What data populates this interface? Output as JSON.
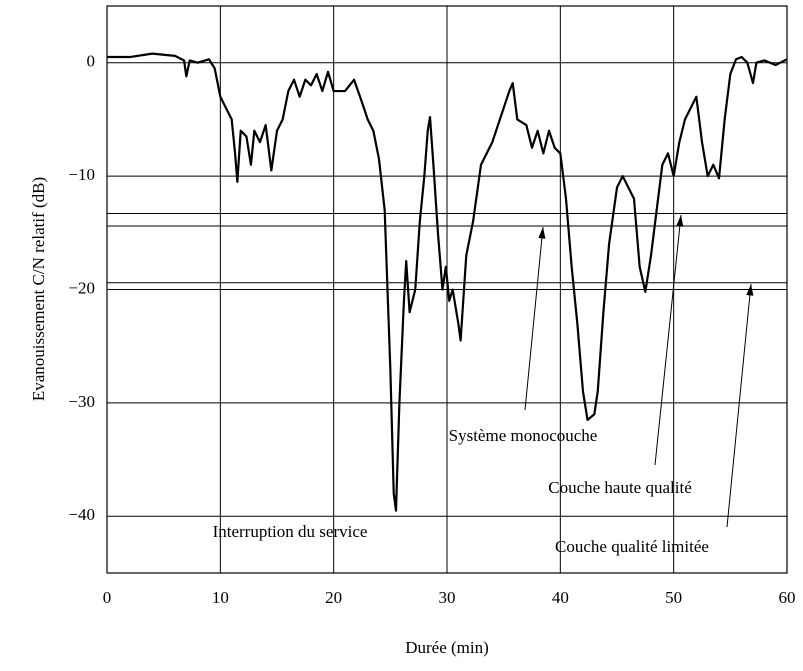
{
  "chart_data": {
    "type": "line",
    "xlabel": "Durée (min)",
    "ylabel": "Evanouissement C/N relatif (dB)",
    "xlim": [
      0,
      60
    ],
    "xticks": [
      0,
      10,
      20,
      30,
      40,
      50,
      60
    ],
    "ylim": [
      -45,
      5
    ],
    "yticks": [
      {
        "value": -40,
        "label": "−40"
      },
      {
        "value": -30,
        "label": "−30"
      },
      {
        "value": -20,
        "label": "−20"
      },
      {
        "value": -10,
        "label": "−10"
      },
      0
    ],
    "grid": true,
    "reference_lines": [
      -13.3,
      -14.4,
      -19.4,
      -20
    ],
    "annotations": [
      "Système monocouche",
      "Couche haute qualité",
      "Couche qualité limitée",
      "Interruption du service"
    ],
    "series": [
      {
        "color": "#000000",
        "x": [
          0,
          2,
          4,
          6,
          6.8,
          7,
          7.3,
          8,
          9,
          9.5,
          10,
          10.5,
          11,
          11.3,
          11.5,
          11.8,
          12.3,
          12.7,
          13,
          13.5,
          14,
          14.5,
          15,
          15.5,
          16,
          16.5,
          17,
          17.5,
          18,
          18.5,
          19,
          19.5,
          20,
          21,
          21.8,
          22.5,
          23,
          23.5,
          24,
          24.5,
          25,
          25.3,
          25.5,
          25.8,
          26.2,
          26.4,
          26.7,
          27.2,
          27.6,
          28,
          28.3,
          28.5,
          28.8,
          29.2,
          29.6,
          29.9,
          30.2,
          30.5,
          31,
          31.2,
          31.7,
          32.3,
          33,
          34,
          35,
          35.5,
          35.8,
          36.2,
          37,
          37.5,
          38,
          38.5,
          39,
          39.5,
          40,
          40.5,
          41,
          41.5,
          42,
          42.4,
          43,
          43.3,
          43.8,
          44.3,
          45,
          45.5,
          46,
          46.5,
          47,
          47.5,
          48,
          48.5,
          49,
          49.5,
          50,
          50.5,
          51,
          52,
          52.5,
          53,
          53.5,
          54,
          54.5,
          55,
          55.5,
          56,
          56.5,
          57,
          57.3,
          58,
          59,
          60
        ],
        "values": [
          0.5,
          0.5,
          0.8,
          0.6,
          0.2,
          -1.2,
          0.2,
          0,
          0.3,
          -0.5,
          -3,
          -4,
          -5,
          -8,
          -10.5,
          -6,
          -6.5,
          -9,
          -6,
          -7,
          -5.5,
          -9.5,
          -6,
          -5,
          -2.5,
          -1.5,
          -3,
          -1.5,
          -2,
          -1,
          -2.5,
          -0.8,
          -2.5,
          -2.5,
          -1.5,
          -3.5,
          -5,
          -6,
          -8.5,
          -13,
          -27,
          -38,
          -39.5,
          -30,
          -21,
          -17.5,
          -22,
          -20,
          -14,
          -10,
          -6,
          -4.8,
          -9,
          -15,
          -20,
          -18,
          -21,
          -20,
          -23,
          -24.5,
          -17,
          -14,
          -9,
          -7,
          -4,
          -2.5,
          -1.8,
          -5,
          -5.5,
          -7.5,
          -6,
          -8,
          -6,
          -7.5,
          -8,
          -12,
          -18,
          -23,
          -29,
          -31.5,
          -31,
          -29,
          -22,
          -16,
          -11,
          -10,
          -11,
          -12,
          -18,
          -20.2,
          -17,
          -13,
          -9,
          -8,
          -10,
          -7,
          -5,
          -3,
          -7,
          -10,
          -9,
          -10.2,
          -5,
          -1,
          0.3,
          0.5,
          0,
          -1.8,
          0,
          0.2,
          -0.2,
          0.3
        ]
      }
    ]
  }
}
